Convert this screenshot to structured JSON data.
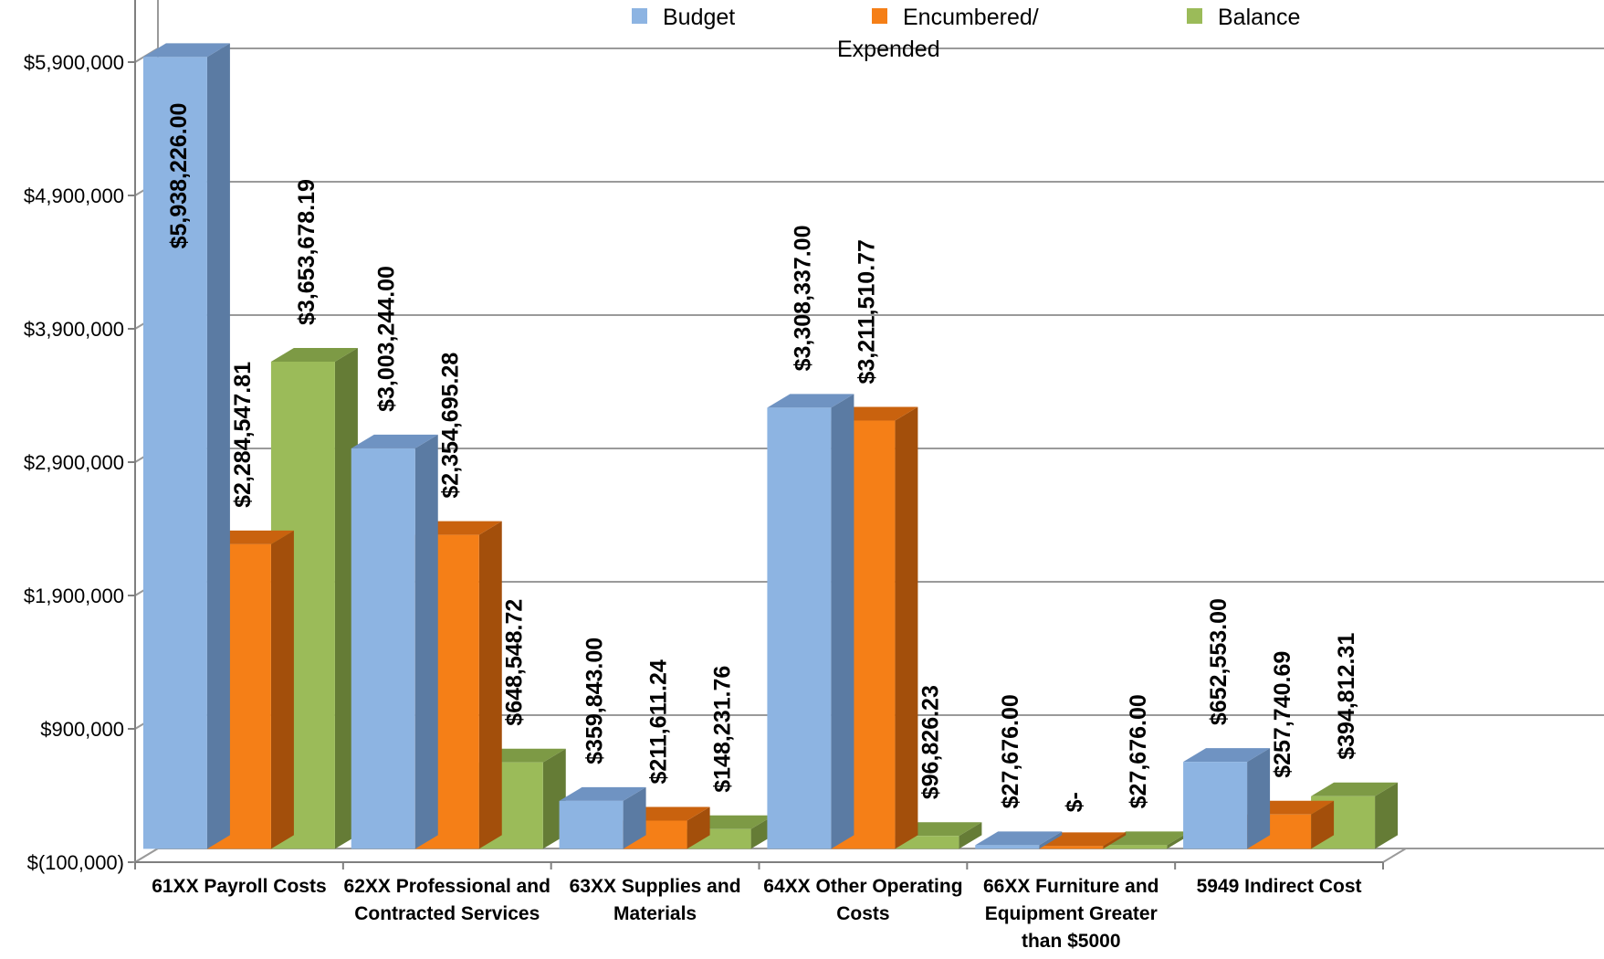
{
  "chart_data": {
    "type": "bar",
    "title": "",
    "xlabel": "",
    "ylabel": "",
    "ylim": [
      -100000,
      6000000
    ],
    "yticks": [
      -100000,
      900000,
      1900000,
      2900000,
      3900000,
      4900000,
      5900000
    ],
    "ytick_labels": [
      "$(100,000)",
      "$900,000",
      "$1,900,000",
      "$2,900,000",
      "$3,900,000",
      "$4,900,000",
      "$5,900,000"
    ],
    "grid": true,
    "legend_position": "top",
    "categories": [
      [
        "61XX Payroll Costs"
      ],
      [
        "62XX Professional and",
        "Contracted Services"
      ],
      [
        "63XX Supplies and",
        "Materials"
      ],
      [
        "64XX Other Operating",
        "Costs"
      ],
      [
        "66XX Furniture and",
        "Equipment Greater",
        "than $5000"
      ],
      [
        "5949 Indirect Cost"
      ]
    ],
    "series": [
      {
        "name": [
          "Budget"
        ],
        "color": "#8db4e2",
        "side_color": "#5b7ba3",
        "top_color": "#6f93c2",
        "values": [
          5938226.0,
          3003244.0,
          359843.0,
          3308337.0,
          27676.0,
          652553.0
        ],
        "labels": [
          "$5,938,226.00",
          "$3,003,244.00",
          "$359,843.00",
          "$3,308,337.00",
          "$27,676.00",
          "$652,553.00"
        ]
      },
      {
        "name": [
          "Encumbered/",
          "Expended"
        ],
        "color": "#f57f17",
        "side_color": "#a34f0b",
        "top_color": "#c9620e",
        "values": [
          2284547.81,
          2354695.28,
          211611.24,
          3211510.77,
          0,
          257740.69
        ],
        "labels": [
          "$2,284,547.81",
          "$2,354,695.28",
          "$211,611.24",
          "$3,211,510.77",
          "$-",
          "$257,740.69"
        ]
      },
      {
        "name": [
          "Balance"
        ],
        "color": "#9bbb59",
        "side_color": "#657c36",
        "top_color": "#7d9a45",
        "values": [
          3653678.19,
          648548.72,
          148231.76,
          96826.23,
          27676.0,
          394812.31
        ],
        "labels": [
          "$3,653,678.19",
          "$648,548.72",
          "$148,231.76",
          "$96,826.23",
          "$27,676.00",
          "$394,812.31"
        ]
      }
    ]
  }
}
